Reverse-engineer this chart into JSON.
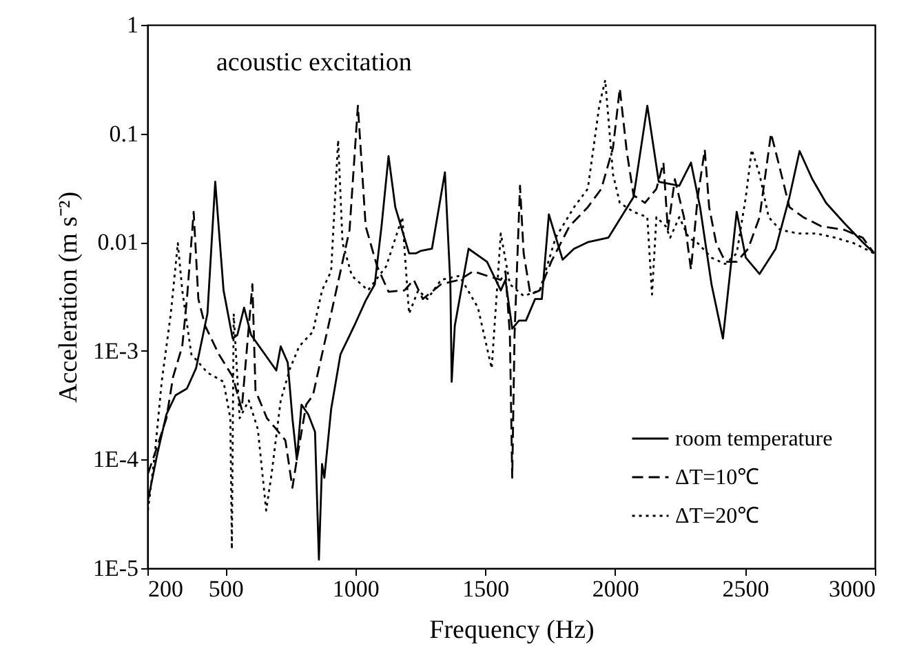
{
  "chart_data": {
    "type": "line",
    "xlabel": "Frequency (Hz)",
    "ylabel": "Acceleration (m s⁻²)",
    "annotations": [
      "acoustic excitation"
    ],
    "xlim": [
      200,
      3000
    ],
    "xticks": [
      200,
      500,
      1000,
      1500,
      2000,
      2500,
      3000
    ],
    "ylim": [
      1e-05,
      1
    ],
    "yticks": [
      {
        "value": 1e-05,
        "label": "1E-5"
      },
      {
        "value": 0.0001,
        "label": "1E-4"
      },
      {
        "value": 0.001,
        "label": "1E-3"
      },
      0.01,
      0.1,
      1
    ],
    "log": true,
    "grid": false,
    "legend": "bottom right",
    "marker": "none",
    "series": [
      {
        "name": "room temperature",
        "color": "#000000",
        "line_style": "solid",
        "x": [
          202,
          237,
          273,
          308,
          352,
          387,
          431,
          461,
          493,
          528,
          546,
          572,
          599,
          652,
          696,
          713,
          740,
          758,
          775,
          793,
          819,
          845,
          860,
          872,
          881,
          907,
          943,
          996,
          1040,
          1075,
          1101,
          1128,
          1154,
          1207,
          1234,
          1251,
          1295,
          1345,
          1366,
          1371,
          1383,
          1436,
          1507,
          1560,
          1578,
          1604,
          1630,
          1657,
          1692,
          1718,
          1745,
          1798,
          1842,
          1895,
          1974,
          2071,
          2124,
          2168,
          2247,
          2292,
          2327,
          2371,
          2415,
          2468,
          2503,
          2556,
          2618,
          2671,
          2710,
          2759,
          2812,
          2882,
          2953,
          2997
        ],
        "values": [
          4.2e-05,
          0.00011,
          0.00026,
          0.00039,
          0.00045,
          0.00069,
          0.0022,
          0.036,
          0.0036,
          0.0013,
          0.0014,
          0.0025,
          0.0014,
          0.00093,
          0.00066,
          0.0011,
          0.00078,
          0.00024,
          0.0001,
          0.00032,
          0.00026,
          0.00018,
          1.2e-05,
          9.1e-05,
          6.8e-05,
          0.00029,
          0.00093,
          0.0017,
          0.0029,
          0.0041,
          0.014,
          0.062,
          0.021,
          0.0079,
          0.0079,
          0.0083,
          0.0087,
          0.044,
          0.0041,
          0.00052,
          0.0017,
          0.0087,
          0.0066,
          0.0036,
          0.0045,
          0.0016,
          0.0019,
          0.0019,
          0.003,
          0.003,
          0.018,
          0.0069,
          0.0087,
          0.01,
          0.011,
          0.026,
          0.18,
          0.036,
          0.033,
          0.054,
          0.021,
          0.0041,
          0.0013,
          0.019,
          0.0072,
          0.0051,
          0.0087,
          0.026,
          0.069,
          0.038,
          0.023,
          0.015,
          0.01,
          0.0079
        ]
      },
      {
        "name": "ΔT=10℃",
        "color": "#000000",
        "line_style": "dashed",
        "x": [
          202,
          237,
          273,
          299,
          334,
          352,
          378,
          396,
          422,
          475,
          528,
          563,
          581,
          604,
          616,
          660,
          696,
          731,
          758,
          775,
          811,
          837,
          872,
          907,
          943,
          978,
          1010,
          1040,
          1084,
          1128,
          1189,
          1225,
          1260,
          1330,
          1401,
          1454,
          1507,
          1560,
          1578,
          1595,
          1604,
          1613,
          1634,
          1648,
          1674,
          1710,
          1754,
          1824,
          1895,
          1947,
          1992,
          2018,
          2045,
          2071,
          2115,
          2159,
          2186,
          2203,
          2230,
          2265,
          2292,
          2318,
          2345,
          2362,
          2389,
          2424,
          2468,
          2512,
          2556,
          2600,
          2627,
          2671,
          2724,
          2794,
          2882,
          2953,
          2997
        ],
        "values": [
          7.4e-05,
          0.00013,
          0.00024,
          0.00058,
          0.0011,
          0.003,
          0.019,
          0.003,
          0.0017,
          0.00093,
          0.00058,
          0.00029,
          0.00093,
          0.0041,
          0.00043,
          0.00024,
          0.00019,
          0.00015,
          5.5e-05,
          0.0001,
          0.00032,
          0.00039,
          0.00093,
          0.0022,
          0.0054,
          0.013,
          0.18,
          0.014,
          0.006,
          0.0035,
          0.0036,
          0.0045,
          0.003,
          0.0041,
          0.0045,
          0.0054,
          0.0049,
          0.0045,
          0.0054,
          0.0014,
          6.8e-05,
          0.0014,
          0.033,
          0.0079,
          0.0033,
          0.0036,
          0.0066,
          0.014,
          0.021,
          0.031,
          0.074,
          0.26,
          0.068,
          0.027,
          0.023,
          0.031,
          0.054,
          0.013,
          0.038,
          0.017,
          0.0056,
          0.026,
          0.071,
          0.021,
          0.0098,
          0.0066,
          0.0066,
          0.0087,
          0.017,
          0.1,
          0.056,
          0.021,
          0.017,
          0.014,
          0.013,
          0.011,
          0.0079
        ]
      },
      {
        "name": "ΔT=20℃",
        "color": "#000000",
        "line_style": "dotted",
        "x": [
          202,
          228,
          255,
          290,
          317,
          334,
          369,
          431,
          493,
          519,
          525,
          532,
          555,
          590,
          625,
          657,
          678,
          713,
          749,
          784,
          837,
          872,
          907,
          934,
          951,
          987,
          1049,
          1119,
          1181,
          1207,
          1242,
          1278,
          1330,
          1401,
          1472,
          1525,
          1560,
          1586,
          1595,
          1648,
          1710,
          1771,
          1842,
          1895,
          1939,
          1962,
          1992,
          2018,
          2071,
          2124,
          2142,
          2159,
          2195,
          2212,
          2247,
          2283,
          2318,
          2371,
          2424,
          2468,
          2503,
          2526,
          2556,
          2591,
          2635,
          2706,
          2776,
          2847,
          2918,
          2997
        ],
        "values": [
          3.4e-05,
          0.00011,
          0.00052,
          0.0022,
          0.0098,
          0.0036,
          0.00093,
          0.00063,
          0.00052,
          0.00024,
          1.5e-05,
          0.0022,
          0.00024,
          0.00035,
          0.00019,
          3.4e-05,
          7.4e-05,
          0.00035,
          0.00069,
          0.0011,
          0.0015,
          0.0036,
          0.0054,
          0.087,
          0.0098,
          0.0049,
          0.0036,
          0.006,
          0.017,
          0.0022,
          0.0036,
          0.003,
          0.0045,
          0.0049,
          0.0025,
          0.00069,
          0.012,
          0.0054,
          0.0041,
          0.0032,
          0.0036,
          0.011,
          0.021,
          0.031,
          0.18,
          0.31,
          0.042,
          0.023,
          0.019,
          0.017,
          0.0033,
          0.017,
          0.014,
          0.011,
          0.017,
          0.011,
          0.0098,
          0.0072,
          0.0063,
          0.0079,
          0.026,
          0.071,
          0.042,
          0.017,
          0.013,
          0.012,
          0.012,
          0.011,
          0.0098,
          0.0079
        ]
      }
    ]
  }
}
